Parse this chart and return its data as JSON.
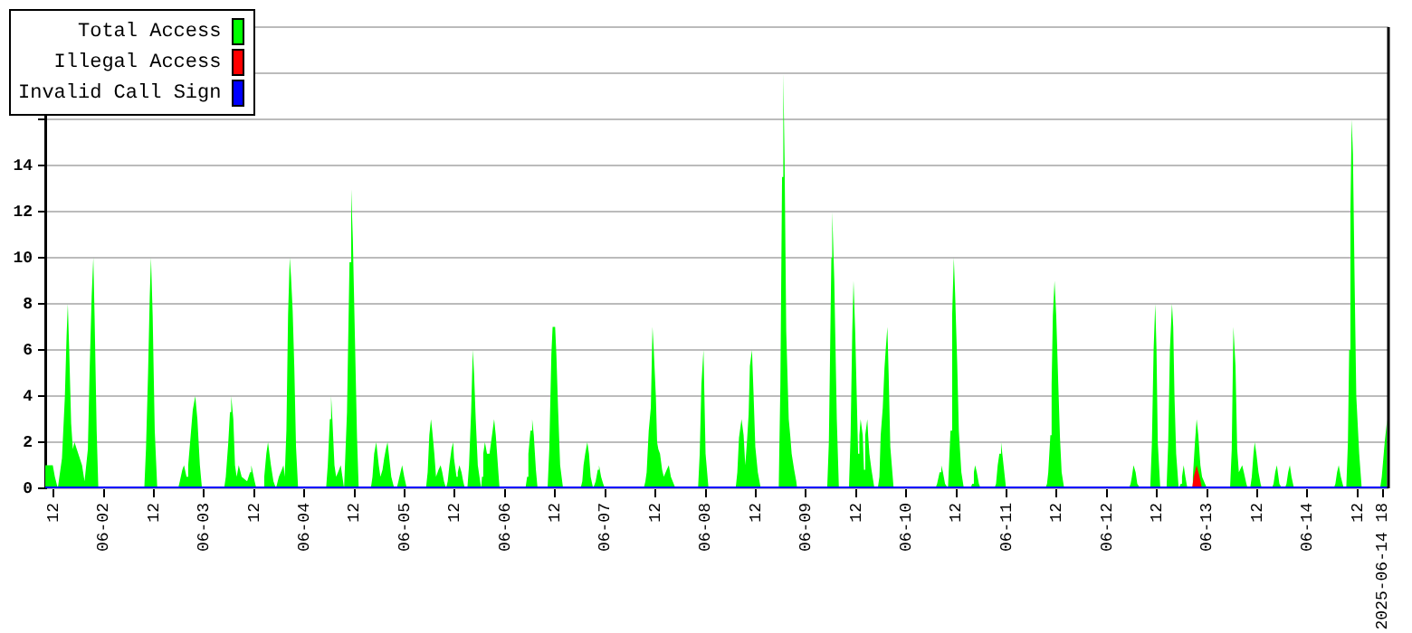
{
  "chart_data": {
    "type": "area",
    "xlim": [
      "2025-06-01T10:00",
      "2025-06-14T19:24"
    ],
    "xticks": [
      {
        "value": "2025-06-01T12:00",
        "label": "12"
      },
      {
        "value": "2025-06-02T00:00",
        "label": "06-02"
      },
      {
        "value": "2025-06-02T12:00",
        "label": "12"
      },
      {
        "value": "2025-06-03T00:00",
        "label": "06-03"
      },
      {
        "value": "2025-06-03T12:00",
        "label": "12"
      },
      {
        "value": "2025-06-04T00:00",
        "label": "06-04"
      },
      {
        "value": "2025-06-04T12:00",
        "label": "12"
      },
      {
        "value": "2025-06-05T00:00",
        "label": "06-05"
      },
      {
        "value": "2025-06-05T12:00",
        "label": "12"
      },
      {
        "value": "2025-06-06T00:00",
        "label": "06-06"
      },
      {
        "value": "2025-06-06T12:00",
        "label": "12"
      },
      {
        "value": "2025-06-07T00:00",
        "label": "06-07"
      },
      {
        "value": "2025-06-07T12:00",
        "label": "12"
      },
      {
        "value": "2025-06-08T00:00",
        "label": "06-08"
      },
      {
        "value": "2025-06-08T12:00",
        "label": "12"
      },
      {
        "value": "2025-06-09T00:00",
        "label": "06-09"
      },
      {
        "value": "2025-06-09T12:00",
        "label": "12"
      },
      {
        "value": "2025-06-10T00:00",
        "label": "06-10"
      },
      {
        "value": "2025-06-10T12:00",
        "label": "12"
      },
      {
        "value": "2025-06-11T00:00",
        "label": "06-11"
      },
      {
        "value": "2025-06-11T12:00",
        "label": "12"
      },
      {
        "value": "2025-06-12T00:00",
        "label": "06-12"
      },
      {
        "value": "2025-06-12T12:00",
        "label": "12"
      },
      {
        "value": "2025-06-13T00:00",
        "label": "06-13"
      },
      {
        "value": "2025-06-13T12:00",
        "label": "12"
      },
      {
        "value": "2025-06-14T00:00",
        "label": "06-14"
      },
      {
        "value": "2025-06-14T12:00",
        "label": "12"
      },
      {
        "value": "2025-06-14T18:00",
        "label": "2025-06-14 18"
      }
    ],
    "ylim": [
      0,
      20
    ],
    "yticks": [
      0,
      2,
      4,
      6,
      8,
      10,
      12,
      14,
      {
        "value": 16,
        "label": null
      },
      {
        "value": 18,
        "label": null
      },
      {
        "value": 20,
        "label": null
      }
    ],
    "grid": "y",
    "legend": "top left",
    "series": [
      {
        "name": "Total Access",
        "color": "#00ff00",
        "x": [
          "2025-06-01T10:00",
          "2025-06-01T11:48",
          "2025-06-01T12:18",
          "2025-06-01T13:00",
          "2025-06-01T14:00",
          "2025-06-01T14:42",
          "2025-06-01T15:06",
          "2025-06-01T15:24",
          "2025-06-01T15:42",
          "2025-06-01T16:12",
          "2025-06-01T16:36",
          "2025-06-01T17:00",
          "2025-06-01T17:54",
          "2025-06-01T18:48",
          "2025-06-01T19:24",
          "2025-06-01T20:12",
          "2025-06-01T20:36",
          "2025-06-01T21:06",
          "2025-06-01T21:30",
          "2025-06-01T21:48",
          "2025-06-01T22:18",
          "2025-06-01T22:42",
          "2025-06-02T09:42",
          "2025-06-02T10:06",
          "2025-06-02T10:36",
          "2025-06-02T11:00",
          "2025-06-02T11:18",
          "2025-06-02T11:42",
          "2025-06-02T12:12",
          "2025-06-02T12:48",
          "2025-06-02T17:48",
          "2025-06-02T18:12",
          "2025-06-02T18:48",
          "2025-06-02T19:12",
          "2025-06-02T19:48",
          "2025-06-02T20:12",
          "2025-06-02T20:48",
          "2025-06-02T21:18",
          "2025-06-02T21:54",
          "2025-06-02T22:24",
          "2025-06-02T23:00",
          "2025-06-02T23:30",
          "2025-06-03T04:48",
          "2025-06-03T05:12",
          "2025-06-03T05:48",
          "2025-06-03T06:12",
          "2025-06-03T06:30",
          "2025-06-03T07:00",
          "2025-06-03T07:24",
          "2025-06-03T07:48",
          "2025-06-03T08:18",
          "2025-06-03T09:00",
          "2025-06-03T10:18",
          "2025-06-03T11:00",
          "2025-06-03T11:18",
          "2025-06-03T12:06",
          "2025-06-03T12:30",
          "2025-06-03T14:00",
          "2025-06-03T14:24",
          "2025-06-03T14:54",
          "2025-06-03T15:18",
          "2025-06-03T16:00",
          "2025-06-03T16:36",
          "2025-06-03T17:12",
          "2025-06-03T17:54",
          "2025-06-03T18:36",
          "2025-06-03T19:00",
          "2025-06-03T19:18",
          "2025-06-03T19:42",
          "2025-06-03T20:06",
          "2025-06-03T20:30",
          "2025-06-03T20:48",
          "2025-06-03T21:12",
          "2025-06-03T21:36",
          "2025-06-03T22:00",
          "2025-06-03T22:30",
          "2025-06-04T05:12",
          "2025-06-04T05:36",
          "2025-06-04T06:06",
          "2025-06-04T06:24",
          "2025-06-04T06:42",
          "2025-06-04T07:12",
          "2025-06-04T07:36",
          "2025-06-04T08:18",
          "2025-06-04T08:42",
          "2025-06-04T09:06",
          "2025-06-04T09:30",
          "2025-06-04T10:12",
          "2025-06-04T10:48",
          "2025-06-04T11:12",
          "2025-06-04T11:36",
          "2025-06-04T12:06",
          "2025-06-04T12:36",
          "2025-06-04T13:00",
          "2025-06-04T15:54",
          "2025-06-04T16:18",
          "2025-06-04T16:42",
          "2025-06-04T17:12",
          "2025-06-04T17:30",
          "2025-06-04T17:48",
          "2025-06-04T18:12",
          "2025-06-04T18:42",
          "2025-06-04T19:06",
          "2025-06-04T19:30",
          "2025-06-04T19:54",
          "2025-06-04T20:12",
          "2025-06-04T20:48",
          "2025-06-04T21:30",
          "2025-06-04T22:06",
          "2025-06-04T22:30",
          "2025-06-04T23:00",
          "2025-06-04T23:24",
          "2025-06-04T23:54",
          "2025-06-05T00:30",
          "2025-06-05T05:06",
          "2025-06-05T05:30",
          "2025-06-05T05:54",
          "2025-06-05T06:18",
          "2025-06-05T06:36",
          "2025-06-05T07:06",
          "2025-06-05T07:30",
          "2025-06-05T08:06",
          "2025-06-05T08:36",
          "2025-06-05T09:00",
          "2025-06-05T09:24",
          "2025-06-05T09:54",
          "2025-06-05T10:18",
          "2025-06-05T10:42",
          "2025-06-05T11:12",
          "2025-06-05T11:36",
          "2025-06-05T11:48",
          "2025-06-05T12:24",
          "2025-06-05T12:42",
          "2025-06-05T13:06",
          "2025-06-05T13:36",
          "2025-06-05T14:00",
          "2025-06-05T14:24",
          "2025-06-05T15:00",
          "2025-06-05T15:24",
          "2025-06-05T15:54",
          "2025-06-05T16:18",
          "2025-06-05T16:36",
          "2025-06-05T17:00",
          "2025-06-05T17:30",
          "2025-06-05T17:54",
          "2025-06-05T18:18",
          "2025-06-05T18:30",
          "2025-06-05T18:48",
          "2025-06-05T19:12",
          "2025-06-05T19:42",
          "2025-06-05T20:18",
          "2025-06-05T20:54",
          "2025-06-05T21:24",
          "2025-06-05T21:48",
          "2025-06-05T22:30",
          "2025-06-05T22:42",
          "2025-06-06T04:54",
          "2025-06-06T05:18",
          "2025-06-06T05:36",
          "2025-06-06T06:06",
          "2025-06-06T06:30",
          "2025-06-06T06:54",
          "2025-06-06T07:24",
          "2025-06-06T07:48",
          "2025-06-06T10:12",
          "2025-06-06T10:36",
          "2025-06-06T11:06",
          "2025-06-06T11:24",
          "2025-06-06T12:00",
          "2025-06-06T12:18",
          "2025-06-06T12:42",
          "2025-06-06T13:12",
          "2025-06-06T13:54",
          "2025-06-06T18:06",
          "2025-06-06T18:30",
          "2025-06-06T18:48",
          "2025-06-06T19:12",
          "2025-06-06T19:42",
          "2025-06-06T20:06",
          "2025-06-06T20:30",
          "2025-06-06T21:06",
          "2025-06-06T21:42",
          "2025-06-06T22:12",
          "2025-06-06T22:30",
          "2025-06-06T22:42",
          "2025-06-06T23:00",
          "2025-06-06T23:30",
          "2025-06-06T23:54",
          "2025-06-07T09:12",
          "2025-06-07T09:36",
          "2025-06-07T09:54",
          "2025-06-07T10:24",
          "2025-06-07T10:54",
          "2025-06-07T11:18",
          "2025-06-07T11:36",
          "2025-06-07T12:06",
          "2025-06-07T12:24",
          "2025-06-07T12:42",
          "2025-06-07T13:06",
          "2025-06-07T13:36",
          "2025-06-07T14:00",
          "2025-06-07T14:42",
          "2025-06-07T15:12",
          "2025-06-07T15:42",
          "2025-06-07T16:48",
          "2025-06-07T22:12",
          "2025-06-07T22:36",
          "2025-06-07T23:00",
          "2025-06-07T23:30",
          "2025-06-08T00:00",
          "2025-06-08T00:42",
          "2025-06-08T07:12",
          "2025-06-08T07:36",
          "2025-06-08T08:00",
          "2025-06-08T08:36",
          "2025-06-08T09:06",
          "2025-06-08T09:30",
          "2025-06-08T09:54",
          "2025-06-08T10:18",
          "2025-06-08T10:36",
          "2025-06-08T11:06",
          "2025-06-08T11:30",
          "2025-06-08T11:54",
          "2025-06-08T12:30",
          "2025-06-08T13:12",
          "2025-06-08T17:30",
          "2025-06-08T17:54",
          "2025-06-08T18:18",
          "2025-06-08T18:36",
          "2025-06-08T18:54",
          "2025-06-08T19:18",
          "2025-06-08T19:54",
          "2025-06-08T20:18",
          "2025-06-08T20:36",
          "2025-06-08T21:12",
          "2025-06-08T21:42",
          "2025-06-08T21:54",
          "2025-06-09T05:06",
          "2025-06-09T05:30",
          "2025-06-09T05:48",
          "2025-06-09T06:06",
          "2025-06-09T06:18",
          "2025-06-09T06:48",
          "2025-06-09T07:24",
          "2025-06-09T07:54",
          "2025-06-09T10:18",
          "2025-06-09T10:42",
          "2025-06-09T11:06",
          "2025-06-09T11:24",
          "2025-06-09T11:48",
          "2025-06-09T12:30",
          "2025-06-09T12:48",
          "2025-06-09T13:06",
          "2025-06-09T13:36",
          "2025-06-09T13:54",
          "2025-06-09T14:12",
          "2025-06-09T14:42",
          "2025-06-09T14:54",
          "2025-06-09T15:12",
          "2025-06-09T15:42",
          "2025-06-09T16:24",
          "2025-06-09T17:12",
          "2025-06-09T17:36",
          "2025-06-09T17:54",
          "2025-06-09T18:24",
          "2025-06-09T18:48",
          "2025-06-09T19:06",
          "2025-06-09T19:30",
          "2025-06-09T19:48",
          "2025-06-09T20:12",
          "2025-06-09T21:00",
          "2025-06-10T07:00",
          "2025-06-10T07:24",
          "2025-06-10T08:00",
          "2025-06-10T08:24",
          "2025-06-10T08:48",
          "2025-06-10T09:18",
          "2025-06-10T10:00",
          "2025-06-10T10:36",
          "2025-06-10T11:00",
          "2025-06-10T11:24",
          "2025-06-10T11:42",
          "2025-06-10T12:12",
          "2025-06-10T12:36",
          "2025-06-10T13:12",
          "2025-06-10T13:48",
          "2025-06-10T15:24",
          "2025-06-10T15:48",
          "2025-06-10T16:12",
          "2025-06-10T16:30",
          "2025-06-10T16:54",
          "2025-06-10T17:24",
          "2025-06-10T17:48",
          "2025-06-10T21:06",
          "2025-06-10T21:30",
          "2025-06-10T21:54",
          "2025-06-10T22:18",
          "2025-06-10T22:42",
          "2025-06-10T23:00",
          "2025-06-10T23:36",
          "2025-06-10T23:54",
          "2025-06-11T09:18",
          "2025-06-11T09:42",
          "2025-06-11T10:00",
          "2025-06-11T10:30",
          "2025-06-11T10:48",
          "2025-06-11T11:06",
          "2025-06-11T11:30",
          "2025-06-11T11:54",
          "2025-06-11T12:24",
          "2025-06-11T12:48",
          "2025-06-11T13:12",
          "2025-06-11T13:48",
          "2025-06-12T05:18",
          "2025-06-12T05:42",
          "2025-06-12T06:00",
          "2025-06-12T06:24",
          "2025-06-12T06:54",
          "2025-06-12T07:18",
          "2025-06-12T08:00",
          "2025-06-12T10:24",
          "2025-06-12T10:48",
          "2025-06-12T11:12",
          "2025-06-12T11:36",
          "2025-06-12T11:54",
          "2025-06-12T12:12",
          "2025-06-12T12:48",
          "2025-06-12T14:18",
          "2025-06-12T14:42",
          "2025-06-12T15:06",
          "2025-06-12T15:36",
          "2025-06-12T15:54",
          "2025-06-12T16:12",
          "2025-06-12T16:36",
          "2025-06-12T17:12",
          "2025-06-12T17:42",
          "2025-06-12T18:00",
          "2025-06-12T18:24",
          "2025-06-12T18:48",
          "2025-06-12T19:18",
          "2025-06-12T20:12",
          "2025-06-12T20:36",
          "2025-06-12T21:06",
          "2025-06-12T21:30",
          "2025-06-12T21:54",
          "2025-06-12T22:24",
          "2025-06-12T22:48",
          "2025-06-12T23:30",
          "2025-06-13T00:00",
          "2025-06-13T05:30",
          "2025-06-13T05:54",
          "2025-06-13T06:18",
          "2025-06-13T06:48",
          "2025-06-13T07:12",
          "2025-06-13T07:36",
          "2025-06-13T08:24",
          "2025-06-13T08:48",
          "2025-06-13T09:24",
          "2025-06-13T09:42",
          "2025-06-13T10:18",
          "2025-06-13T10:42",
          "2025-06-13T11:06",
          "2025-06-13T11:24",
          "2025-06-13T11:48",
          "2025-06-13T12:18",
          "2025-06-13T12:48",
          "2025-06-13T13:06",
          "2025-06-13T15:30",
          "2025-06-13T15:54",
          "2025-06-13T16:18",
          "2025-06-13T16:42",
          "2025-06-13T17:18",
          "2025-06-13T17:54",
          "2025-06-13T18:36",
          "2025-06-13T19:00",
          "2025-06-13T19:24",
          "2025-06-13T19:48",
          "2025-06-13T20:12",
          "2025-06-13T20:48",
          "2025-06-14T06:18",
          "2025-06-14T06:42",
          "2025-06-14T07:06",
          "2025-06-14T07:30",
          "2025-06-14T08:00",
          "2025-06-14T08:42",
          "2025-06-14T09:18",
          "2025-06-14T09:42",
          "2025-06-14T10:00",
          "2025-06-14T10:18",
          "2025-06-14T10:36",
          "2025-06-14T10:54",
          "2025-06-14T11:18",
          "2025-06-14T11:42",
          "2025-06-14T12:24",
          "2025-06-14T13:00",
          "2025-06-14T17:24",
          "2025-06-14T17:48",
          "2025-06-14T18:30",
          "2025-06-14T19:06"
        ],
        "values": [
          1,
          1,
          0.5,
          0,
          1.3,
          4,
          6.6,
          8,
          6.2,
          2.8,
          1.7,
          2,
          1.5,
          1,
          0.3,
          1.7,
          5,
          8.3,
          10,
          7.5,
          2.5,
          0,
          0,
          1.7,
          5,
          8.3,
          10,
          7.5,
          2.5,
          0,
          0,
          0.3,
          0.8,
          1,
          0.5,
          1,
          2.3,
          3.4,
          4,
          3,
          1,
          0,
          0,
          0.5,
          2,
          3.3,
          4,
          3,
          1,
          0.5,
          1,
          0.5,
          0.3,
          0.7,
          1,
          0.3,
          0,
          0,
          0.5,
          1.5,
          2,
          1,
          0.3,
          0,
          0.5,
          0.8,
          1,
          0.5,
          2.5,
          7.5,
          10,
          9.2,
          7.7,
          5.2,
          1.8,
          0,
          0,
          1,
          3,
          4,
          3,
          1,
          0.5,
          0.8,
          1,
          0.5,
          0,
          3.3,
          9.8,
          13,
          10.8,
          6.5,
          2.2,
          0,
          0,
          0.5,
          1.5,
          2,
          1.5,
          1,
          0.5,
          0.8,
          1.3,
          1.7,
          2,
          1.5,
          0.5,
          0,
          0,
          0.3,
          0.7,
          1,
          0.5,
          0,
          0,
          0.7,
          2.3,
          3,
          2.5,
          1.5,
          0.5,
          0.8,
          1,
          0.7,
          0.3,
          0,
          0.3,
          1,
          1.7,
          2,
          1.3,
          0.5,
          0.7,
          1,
          0.7,
          0.3,
          0,
          0,
          1,
          3.3,
          6,
          5,
          3,
          1,
          0.5,
          0,
          0.5,
          1.5,
          2,
          1.5,
          1.5,
          2.3,
          3,
          2.3,
          0.5,
          0,
          0,
          0.5,
          1.5,
          2.5,
          3,
          2.3,
          0.8,
          0,
          0,
          1.7,
          5.8,
          7,
          7,
          5.8,
          3.5,
          1,
          0,
          0,
          0.3,
          1,
          1.5,
          2,
          1.5,
          0.5,
          0,
          0.3,
          0.8,
          1,
          0.8,
          0.5,
          0.2,
          0,
          0,
          0.3,
          0.7,
          2.5,
          3.5,
          7,
          6,
          4,
          2,
          1.7,
          1.5,
          0.8,
          0.5,
          0.8,
          1,
          0.5,
          0,
          0,
          1.5,
          4.5,
          6,
          1.5,
          0,
          0,
          0.7,
          2.2,
          3,
          2.3,
          1,
          2,
          3.2,
          5.3,
          6,
          4,
          1.8,
          0.7,
          0,
          0,
          4.5,
          13.5,
          18,
          14.3,
          6.8,
          3,
          2.2,
          1.5,
          0.8,
          0.3,
          0,
          0,
          2,
          6,
          10,
          12,
          9,
          3,
          0,
          0,
          2.3,
          6.8,
          9,
          6.8,
          1.5,
          2.3,
          3,
          2.3,
          0.8,
          2.3,
          3,
          2.3,
          1.5,
          0.8,
          0,
          0,
          0.5,
          2.3,
          3.5,
          5.2,
          6,
          7,
          5,
          1.8,
          0,
          0,
          0.2,
          0.7,
          1,
          0.7,
          0.2,
          0,
          2.5,
          7.5,
          10,
          8.5,
          5.5,
          2.5,
          0.7,
          0,
          0,
          0.2,
          0.7,
          1,
          0.7,
          0.2,
          0,
          0,
          0.2,
          1,
          1.5,
          2,
          1.5,
          0.5,
          0,
          0,
          0.2,
          0.7,
          2.3,
          4.5,
          7.5,
          9,
          7.5,
          4.5,
          2.2,
          0.7,
          0,
          0,
          0.2,
          0.5,
          1,
          0.7,
          0.2,
          0,
          0,
          2,
          6,
          8,
          6,
          2,
          0,
          0,
          2,
          6,
          8,
          7,
          4,
          1.5,
          0,
          0.2,
          0.5,
          1,
          0.5,
          0,
          0,
          0.5,
          2,
          3,
          2.3,
          1,
          0.5,
          0.2,
          0,
          0,
          1.7,
          7,
          5.3,
          1.7,
          0.7,
          1,
          0.7,
          0.2,
          0,
          0,
          0.5,
          1.5,
          2,
          1.5,
          0.7,
          0.2,
          0,
          0,
          0.2,
          0.7,
          1,
          0.2,
          0,
          0,
          0.2,
          0.7,
          1,
          0.5,
          0,
          0,
          0.2,
          0.7,
          1,
          0.5,
          0,
          0,
          2,
          6,
          12,
          16,
          14.5,
          9,
          4,
          1.5,
          0,
          0,
          0.5,
          2,
          3
        ]
      },
      {
        "name": "Illegal Access",
        "color": "#ff0000",
        "x": [
          "2025-06-12T20:24",
          "2025-06-12T20:48",
          "2025-06-12T21:30",
          "2025-06-12T22:12",
          "2025-06-12T22:48"
        ],
        "values": [
          0,
          0.5,
          1,
          0.5,
          0
        ]
      },
      {
        "name": "Invalid Call Sign",
        "color": "#0000ff",
        "type": "line",
        "x": [
          "2025-06-01T10:00",
          "2025-06-14T19:24"
        ],
        "values": [
          0,
          0
        ]
      }
    ]
  }
}
